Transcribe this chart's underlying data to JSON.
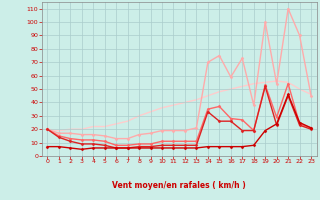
{
  "title": "",
  "xlabel": "Vent moyen/en rafales ( km/h )",
  "x": [
    0,
    1,
    2,
    3,
    4,
    5,
    6,
    7,
    8,
    9,
    10,
    11,
    12,
    13,
    14,
    15,
    16,
    17,
    18,
    19,
    20,
    21,
    22,
    23
  ],
  "series": [
    {
      "color": "#cc0000",
      "values": [
        7,
        7,
        6,
        5,
        6,
        6,
        6,
        6,
        6,
        6,
        6,
        6,
        6,
        6,
        7,
        7,
        7,
        7,
        8,
        19,
        24,
        46,
        25,
        21
      ],
      "marker": "D",
      "markersize": 1.5,
      "linewidth": 1.0,
      "zorder": 5
    },
    {
      "color": "#dd2222",
      "values": [
        20,
        14,
        11,
        9,
        9,
        8,
        6,
        6,
        7,
        7,
        8,
        8,
        8,
        8,
        33,
        26,
        26,
        19,
        19,
        52,
        23,
        45,
        23,
        20
      ],
      "marker": "D",
      "markersize": 1.5,
      "linewidth": 1.0,
      "zorder": 4
    },
    {
      "color": "#ff6666",
      "values": [
        20,
        15,
        13,
        12,
        12,
        11,
        8,
        8,
        9,
        9,
        11,
        11,
        11,
        11,
        35,
        37,
        28,
        27,
        19,
        53,
        29,
        54,
        24,
        21
      ],
      "marker": "D",
      "markersize": 1.5,
      "linewidth": 1.0,
      "zorder": 3
    },
    {
      "color": "#ffaaaa",
      "values": [
        20,
        17,
        17,
        16,
        16,
        15,
        13,
        13,
        16,
        17,
        19,
        19,
        19,
        21,
        70,
        75,
        59,
        73,
        38,
        100,
        54,
        110,
        90,
        45
      ],
      "marker": "D",
      "markersize": 1.5,
      "linewidth": 1.0,
      "zorder": 2
    },
    {
      "color": "#ffcccc",
      "values": [
        20,
        19,
        20,
        20,
        22,
        22,
        24,
        26,
        30,
        33,
        36,
        38,
        40,
        42,
        45,
        48,
        50,
        52,
        54,
        55,
        56,
        55,
        50,
        46
      ],
      "marker": null,
      "markersize": 0,
      "linewidth": 1.0,
      "zorder": 1
    }
  ],
  "ylim": [
    0,
    115
  ],
  "xlim": [
    -0.5,
    23.5
  ],
  "yticks": [
    0,
    10,
    20,
    30,
    40,
    50,
    60,
    70,
    80,
    90,
    100,
    110
  ],
  "xticks": [
    0,
    1,
    2,
    3,
    4,
    5,
    6,
    7,
    8,
    9,
    10,
    11,
    12,
    13,
    14,
    15,
    16,
    17,
    18,
    19,
    20,
    21,
    22,
    23
  ],
  "bg_color": "#cceee8",
  "grid_color": "#aacccc",
  "tick_color": "#cc0000",
  "label_color": "#cc0000",
  "arrow_symbols": [
    "⇖",
    "↗",
    "↑",
    "↗",
    "⇖",
    "⇖",
    "↗",
    "↗",
    "↑",
    "↑",
    "↓",
    "↑",
    "⇖",
    "⇖",
    "↙",
    "↓",
    "⇖",
    "⇖",
    "↙",
    "⇖",
    "⇖",
    "⇖",
    "⇖",
    "⇖"
  ]
}
